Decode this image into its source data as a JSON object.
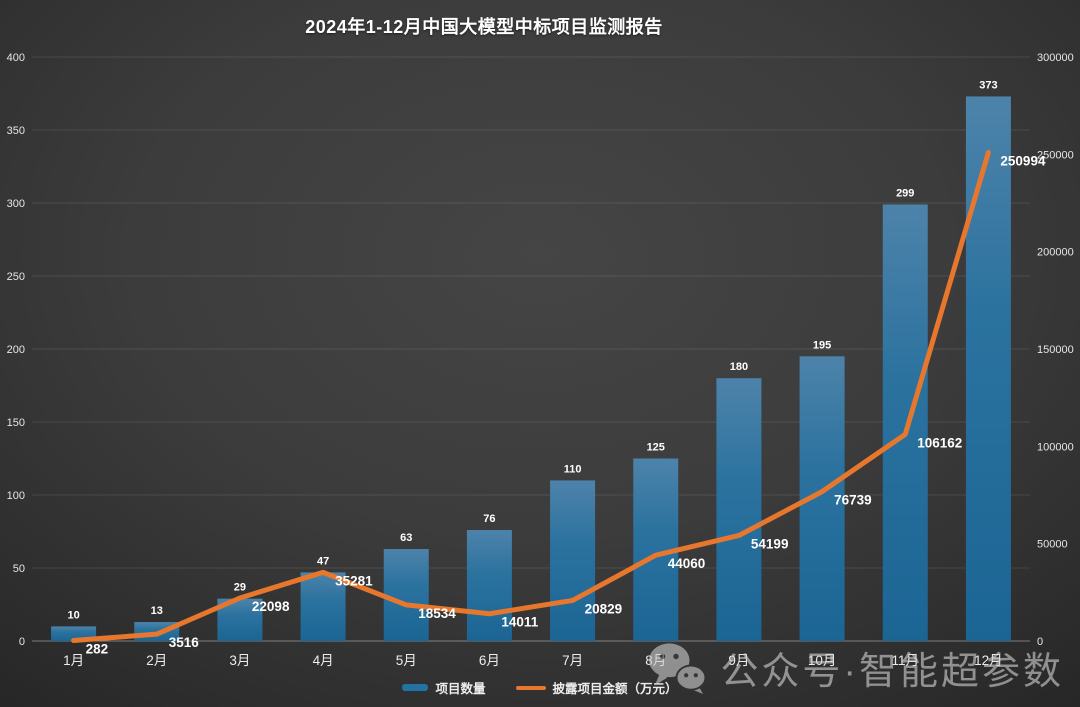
{
  "title": "2024年1-12月中国大模型中标项目监测报告",
  "chart_data": {
    "type": "bar+line combo",
    "title": "2024年1-12月中国大模型中标项目监测报告",
    "categories": [
      "1月",
      "2月",
      "3月",
      "4月",
      "5月",
      "6月",
      "7月",
      "8月",
      "9月",
      "10月",
      "11月",
      "12月"
    ],
    "series": [
      {
        "name": "项目数量",
        "type": "bar",
        "axis": "left",
        "values": [
          10,
          13,
          29,
          47,
          63,
          76,
          110,
          125,
          180,
          195,
          299,
          373
        ]
      },
      {
        "name": "披露项目金额（万元）",
        "type": "line",
        "axis": "right",
        "values": [
          282,
          3516,
          22098,
          35281,
          18534,
          14011,
          20829,
          44060,
          54199,
          76739,
          106162,
          250994
        ]
      }
    ],
    "left_axis": {
      "min": 0,
      "max": 400,
      "step": 50,
      "ticks": [
        0,
        50,
        100,
        150,
        200,
        250,
        300,
        350,
        400
      ]
    },
    "right_axis": {
      "min": 0,
      "max": 300000,
      "step": 50000,
      "ticks": [
        0,
        50000,
        100000,
        150000,
        200000,
        250000,
        300000
      ]
    },
    "grid": true,
    "legend_position": "bottom",
    "data_labels": true
  },
  "legend": [
    {
      "label": "项目数量",
      "type": "bar",
      "color": "#2273A3"
    },
    {
      "label": "披露项目金额（万元）",
      "type": "line",
      "color": "#E8772E"
    }
  ],
  "watermark": {
    "icon": "wechat-icon",
    "text": "公众号·智能超参数"
  },
  "colors": {
    "background_center": "#454545",
    "background_edge": "#242424",
    "bar_top": "#4D83AA",
    "bar_bottom": "#1B6594",
    "line": "#E8772E",
    "text": "#FFFFFF",
    "gridline": "rgba(255,255,255,0.10)",
    "axis_line": "rgba(255,255,255,0.38)"
  }
}
